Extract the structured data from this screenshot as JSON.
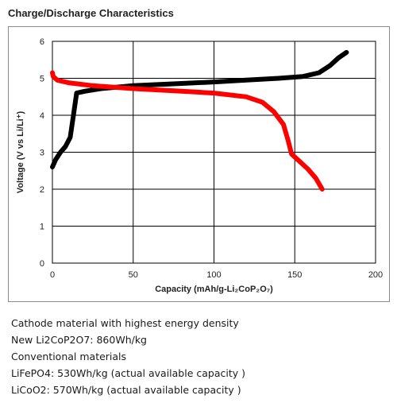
{
  "heading": "Charge/Discharge Characteristics",
  "chart_data": {
    "type": "line",
    "xlabel": "Capacity (mAh/g-Li₂CoP₂O₇)",
    "ylabel": "Voltage (V vs Li/Li⁺)",
    "xlim": [
      0,
      200
    ],
    "ylim": [
      0,
      6
    ],
    "x_ticks": [
      "0",
      "50",
      "100",
      "150",
      "200"
    ],
    "y_ticks": [
      "0",
      "1",
      "2",
      "3",
      "4",
      "5",
      "6"
    ],
    "grid": true,
    "legend": "none",
    "series": [
      {
        "color": "#000000",
        "points": [
          [
            0,
            2.6
          ],
          [
            2,
            2.8
          ],
          [
            5,
            3.0
          ],
          [
            8,
            3.15
          ],
          [
            11,
            3.4
          ],
          [
            13,
            4.0
          ],
          [
            15,
            4.6
          ],
          [
            20,
            4.65
          ],
          [
            30,
            4.72
          ],
          [
            50,
            4.8
          ],
          [
            80,
            4.86
          ],
          [
            100,
            4.9
          ],
          [
            120,
            4.95
          ],
          [
            140,
            5.0
          ],
          [
            155,
            5.05
          ],
          [
            165,
            5.15
          ],
          [
            172,
            5.35
          ],
          [
            177,
            5.55
          ],
          [
            182,
            5.7
          ]
        ]
      },
      {
        "color": "#ff0000",
        "points": [
          [
            0,
            5.15
          ],
          [
            0.5,
            5.05
          ],
          [
            3,
            4.95
          ],
          [
            10,
            4.88
          ],
          [
            25,
            4.8
          ],
          [
            50,
            4.72
          ],
          [
            80,
            4.65
          ],
          [
            100,
            4.6
          ],
          [
            120,
            4.5
          ],
          [
            130,
            4.35
          ],
          [
            137,
            4.1
          ],
          [
            143,
            3.75
          ],
          [
            146,
            3.3
          ],
          [
            148,
            2.95
          ],
          [
            153,
            2.75
          ],
          [
            158,
            2.55
          ],
          [
            163,
            2.3
          ],
          [
            167,
            2.0
          ]
        ]
      }
    ]
  },
  "notes": {
    "line1": "Cathode material with highest energy density",
    "line2": "New Li2CoP2O7: 860Wh/kg",
    "line3": "Conventional materials",
    "line4": "LiFePO4: 530Wh/kg (actual available capacity )",
    "line5": "LiCoO2: 570Wh/kg (actual available capacity )"
  }
}
